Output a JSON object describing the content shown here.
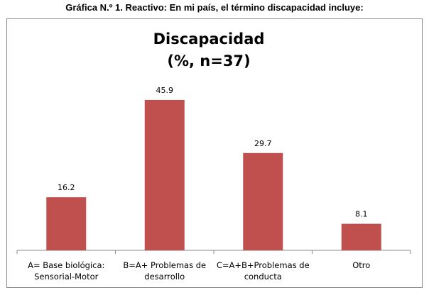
{
  "caption": "Gráfica N.º 1. Reactivo: En mi país, el término discapacidad incluye:",
  "chart_data": {
    "type": "bar",
    "title": "Discapacidad",
    "subtitle": "(%, n=37)",
    "categories": [
      [
        "A= Base biológica:",
        "Sensorial-Motor"
      ],
      [
        "B=A+ Problemas de",
        "desarrollo"
      ],
      [
        "C=A+B+Problemas de",
        "conducta"
      ],
      [
        "Otro"
      ]
    ],
    "values": [
      16.2,
      45.9,
      29.7,
      8.1
    ],
    "value_labels": [
      "16.2",
      "45.9",
      "29.7",
      "8.1"
    ],
    "ylim": [
      0,
      50
    ],
    "grid": false,
    "legend": "none",
    "bar_color": "#C0504D",
    "axis_color": "#8a8a8a"
  }
}
